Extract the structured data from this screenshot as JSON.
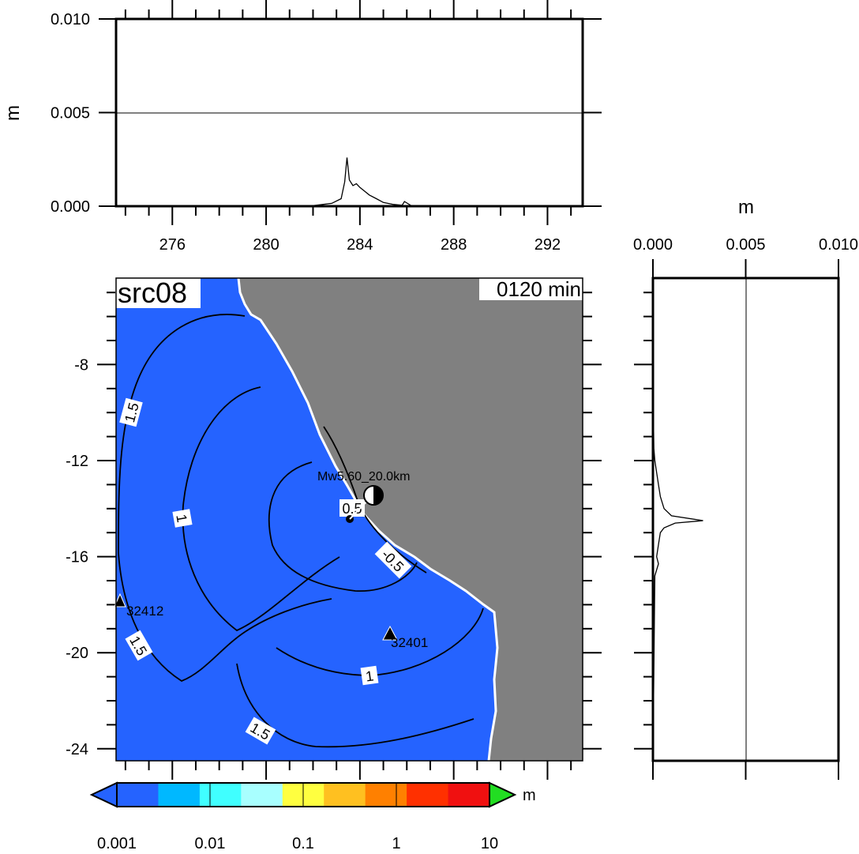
{
  "chart_data": [
    {
      "id": "top-profile",
      "type": "line",
      "ylabel": "m",
      "xlim": [
        273.6,
        293.5
      ],
      "ylim": [
        0.0,
        0.01
      ],
      "xticks": [
        "276",
        "280",
        "284",
        "288",
        "292"
      ],
      "yticks": [
        "0.000",
        "0.005",
        "0.010"
      ],
      "reference_line_y": 0.005,
      "x": [
        273.6,
        281.0,
        282.0,
        282.8,
        283.2,
        283.35,
        283.45,
        283.55,
        283.7,
        283.85,
        284.0,
        284.2,
        284.4,
        284.7,
        285.0,
        285.4,
        285.8,
        285.9,
        286.2,
        287.0,
        288.0,
        290.0,
        293.5
      ],
      "y": [
        0.0,
        0.0,
        3e-05,
        0.00015,
        0.0004,
        0.0013,
        0.0026,
        0.0014,
        0.0011,
        0.0012,
        0.001,
        0.0008,
        0.0006,
        0.0004,
        0.0002,
        0.0001,
        5e-05,
        0.00025,
        2e-05,
        1e-05,
        0.0,
        0.0,
        0.0
      ]
    },
    {
      "id": "right-profile",
      "type": "line",
      "xlabel": "m",
      "xlim": [
        0.0,
        0.01
      ],
      "ylim": [
        -24.5,
        -4.4
      ],
      "xticks": [
        "0.000",
        "0.005",
        "0.010"
      ],
      "reference_line_x": 0.005,
      "y": [
        -4.4,
        -9.0,
        -11.5,
        -12.0,
        -12.5,
        -13.0,
        -13.5,
        -14.0,
        -14.3,
        -14.5,
        -14.6,
        -14.8,
        -15.0,
        -15.5,
        -16.0,
        -16.3,
        -16.8,
        -24.5
      ],
      "x": [
        0.0,
        0.0,
        5e-05,
        0.0001,
        0.0002,
        0.0003,
        0.0004,
        0.0006,
        0.001,
        0.0027,
        0.0012,
        0.0006,
        0.0004,
        0.0003,
        0.0002,
        0.0003,
        0.0001,
        0.0
      ]
    },
    {
      "id": "map",
      "type": "contour-map",
      "title": "src08",
      "time_label": "0120 min",
      "xlim": [
        273.6,
        293.5
      ],
      "ylim": [
        -24.5,
        -4.4
      ],
      "yticks": [
        "-8",
        "-12",
        "-16",
        "-20",
        "-24"
      ],
      "ocean_color": "#2563ff",
      "land_color": "#808080",
      "contour_labels": [
        "1.5",
        "1",
        "0.5",
        "-0.5",
        "1.5",
        "1",
        "1.5"
      ],
      "event_label": "Mw5.60_20.0km",
      "stations": [
        "32412",
        "32401"
      ]
    }
  ],
  "colorbar": {
    "unit": "m",
    "tick_labels": [
      "0.001",
      "0.01",
      "0.1",
      "1",
      "10"
    ],
    "colors": [
      "#2563ff",
      "#00b8ff",
      "#40ffff",
      "#a8ffff",
      "#ffff40",
      "#ffc020",
      "#ff8000",
      "#ff3000",
      "#f01010"
    ],
    "under_color": "#2563ff",
    "over_color": "#22dd22"
  }
}
